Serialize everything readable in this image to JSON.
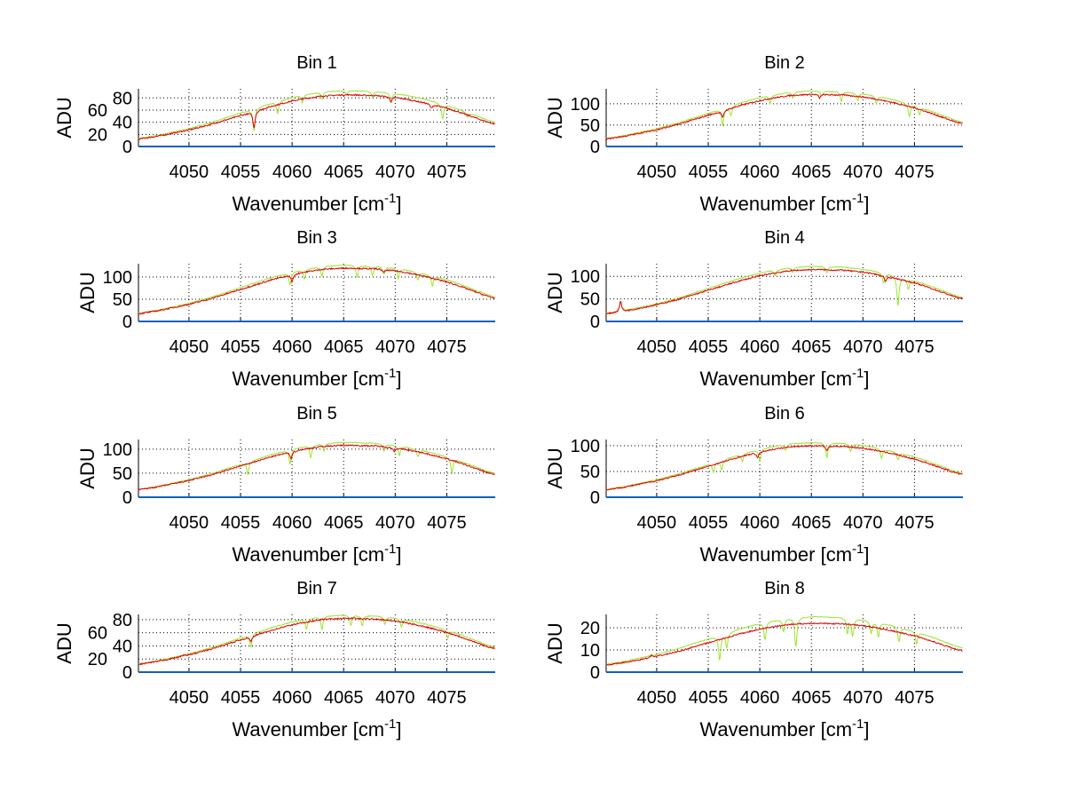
{
  "chart_data": {
    "type": "line",
    "layout": "4x2 subplots",
    "xlabel": "Wavenumber [cm",
    "xlabel_sup": "-1",
    "xlabel_close": "]",
    "ylabel": "ADU",
    "xlim": [
      4045.1,
      4079.7
    ],
    "xticks": [
      4050,
      4055,
      4060,
      4065,
      4070,
      4075
    ],
    "grid": true,
    "colors": {
      "green": "#99e62e",
      "red": "#e00000",
      "blue": "#1060c0"
    },
    "profile_x": [
      4045,
      4046,
      4047,
      4048,
      4049,
      4050,
      4051,
      4052,
      4053,
      4054,
      4055,
      4056,
      4057,
      4058,
      4059,
      4060,
      4061,
      4062,
      4063,
      4064,
      4065,
      4066,
      4067,
      4068,
      4069,
      4070,
      4071,
      4072,
      4073,
      4074,
      4075,
      4076,
      4077,
      4078,
      4079,
      4080
    ],
    "profile": [
      0.14,
      0.17,
      0.2,
      0.24,
      0.28,
      0.32,
      0.37,
      0.42,
      0.48,
      0.54,
      0.6,
      0.66,
      0.72,
      0.78,
      0.83,
      0.88,
      0.92,
      0.95,
      0.98,
      0.99,
      1.0,
      1.0,
      0.99,
      0.99,
      0.97,
      0.95,
      0.92,
      0.88,
      0.84,
      0.79,
      0.74,
      0.68,
      0.61,
      0.54,
      0.47,
      0.42
    ],
    "panels": [
      {
        "title": "Bin 1",
        "ylim": [
          0,
          95
        ],
        "yticks": [
          0,
          20,
          40,
          60,
          80
        ],
        "red_peak": 85,
        "green_peak": 92,
        "green_lines": [
          [
            4056.3,
            0.45
          ],
          [
            4058.6,
            0.25
          ],
          [
            4061.0,
            0.15
          ],
          [
            4062.9,
            0.15
          ],
          [
            4065.3,
            0.08
          ],
          [
            4067.8,
            0.12
          ],
          [
            4069.6,
            0.2
          ],
          [
            4074.6,
            0.3
          ],
          [
            4077.0,
            0.1
          ]
        ],
        "red_lines": [
          [
            4056.3,
            0.35
          ],
          [
            4069.6,
            0.1
          ],
          [
            4073.5,
            0.08
          ]
        ]
      },
      {
        "title": "Bin 2",
        "ylim": [
          0,
          135
        ],
        "yticks": [
          0,
          50,
          100
        ],
        "red_peak": 122,
        "green_peak": 130,
        "green_lines": [
          [
            4056.4,
            0.35
          ],
          [
            4057.2,
            0.2
          ],
          [
            4061.0,
            0.15
          ],
          [
            4063.2,
            0.12
          ],
          [
            4066.0,
            0.1
          ],
          [
            4067.9,
            0.2
          ],
          [
            4069.5,
            0.15
          ],
          [
            4071.3,
            0.15
          ],
          [
            4074.5,
            0.25
          ],
          [
            4075.5,
            0.15
          ]
        ],
        "red_lines": [
          [
            4056.4,
            0.15
          ],
          [
            4065.8,
            0.08
          ]
        ]
      },
      {
        "title": "Bin 3",
        "ylim": [
          0,
          130
        ],
        "yticks": [
          0,
          50,
          100
        ],
        "red_peak": 120,
        "green_peak": 127,
        "green_lines": [
          [
            4059.8,
            0.25
          ],
          [
            4061.2,
            0.2
          ],
          [
            4062.9,
            0.2
          ],
          [
            4066.3,
            0.25
          ],
          [
            4067.8,
            0.2
          ],
          [
            4068.9,
            0.15
          ],
          [
            4070.3,
            0.2
          ],
          [
            4072.2,
            0.15
          ],
          [
            4073.6,
            0.2
          ]
        ],
        "red_lines": [
          [
            4060.0,
            0.15
          ],
          [
            4068.9,
            0.06
          ]
        ]
      },
      {
        "title": "Bin 4",
        "ylim": [
          0,
          128
        ],
        "yticks": [
          0,
          50,
          100
        ],
        "red_peak": 115,
        "green_peak": 122,
        "green_lines": [
          [
            4046.5,
            -0.8
          ],
          [
            4061.5,
            0.12
          ],
          [
            4063.2,
            0.1
          ],
          [
            4066.5,
            0.12
          ],
          [
            4072.0,
            0.2
          ],
          [
            4073.4,
            0.6
          ],
          [
            4074.4,
            0.2
          ]
        ],
        "red_lines": [
          [
            4046.5,
            -0.9
          ],
          [
            4072.2,
            0.12
          ]
        ]
      },
      {
        "title": "Bin 5",
        "ylim": [
          0,
          120
        ],
        "yticks": [
          0,
          50,
          100
        ],
        "red_peak": 108,
        "green_peak": 114,
        "green_lines": [
          [
            4055.7,
            0.25
          ],
          [
            4059.8,
            0.3
          ],
          [
            4061.8,
            0.25
          ],
          [
            4063.1,
            0.15
          ],
          [
            4068.9,
            0.15
          ],
          [
            4070.4,
            0.2
          ],
          [
            4072.2,
            0.15
          ],
          [
            4075.5,
            0.3
          ]
        ],
        "red_lines": [
          [
            4059.9,
            0.15
          ],
          [
            4069.9,
            0.08
          ]
        ]
      },
      {
        "title": "Bin 6",
        "ylim": [
          0,
          112
        ],
        "yticks": [
          0,
          50,
          100
        ],
        "red_peak": 100,
        "green_peak": 106,
        "green_lines": [
          [
            4055.5,
            0.2
          ],
          [
            4056.3,
            0.2
          ],
          [
            4058.3,
            0.15
          ],
          [
            4060.0,
            0.25
          ],
          [
            4062.5,
            0.12
          ],
          [
            4066.5,
            0.3
          ],
          [
            4068.8,
            0.15
          ],
          [
            4071.8,
            0.2
          ],
          [
            4073.4,
            0.15
          ]
        ],
        "red_lines": [
          [
            4059.8,
            0.12
          ],
          [
            4066.5,
            0.1
          ]
        ]
      },
      {
        "title": "Bin 7",
        "ylim": [
          0,
          88
        ],
        "yticks": [
          0,
          20,
          40,
          60,
          80
        ],
        "red_peak": 82,
        "green_peak": 87,
        "green_lines": [
          [
            4056.0,
            0.25
          ],
          [
            4061.4,
            0.2
          ],
          [
            4062.9,
            0.25
          ],
          [
            4065.7,
            0.2
          ],
          [
            4066.8,
            0.2
          ],
          [
            4069.0,
            0.15
          ],
          [
            4070.6,
            0.15
          ],
          [
            4075.1,
            0.15
          ]
        ],
        "red_lines": [
          [
            4049.5,
            -0.1
          ],
          [
            4056.0,
            0.1
          ]
        ]
      },
      {
        "title": "Bin 8",
        "ylim": [
          0,
          26
        ],
        "yticks": [
          0,
          10,
          20
        ],
        "red_peak": 22,
        "green_peak": 25,
        "green_lines": [
          [
            4056.1,
            0.5
          ],
          [
            4056.8,
            0.3
          ],
          [
            4060.5,
            0.35
          ],
          [
            4062.3,
            0.25
          ],
          [
            4063.5,
            0.6
          ],
          [
            4068.5,
            0.3
          ],
          [
            4069.0,
            0.35
          ],
          [
            4070.8,
            0.25
          ],
          [
            4071.5,
            0.3
          ],
          [
            4073.5,
            0.3
          ],
          [
            4075.2,
            0.25
          ]
        ],
        "red_lines": [
          [
            4049.5,
            -0.2
          ],
          [
            4075.2,
            -0.1
          ]
        ]
      }
    ]
  }
}
